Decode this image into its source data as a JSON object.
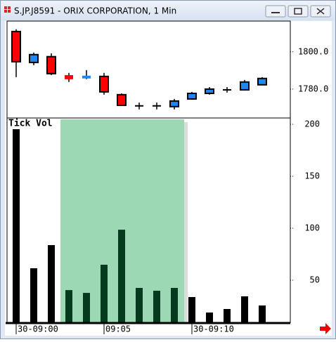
{
  "window_title": "S.JP.J8591 - ORIX CORPORATION, 1 Min",
  "chart_data": [
    {
      "type": "candlestick",
      "categories": [
        "30-09:00",
        null,
        null,
        null,
        null,
        "09:05",
        null,
        null,
        null,
        null,
        "30-09:10",
        null,
        null,
        null,
        null
      ],
      "open": [
        1810.9,
        1794.3,
        1797.4,
        1787.5,
        1785.7,
        1786.8,
        1777.0,
        1771.0,
        1771.0,
        1770.6,
        1774.7,
        1777.7,
        1779.6,
        1779.6,
        1782.3
      ],
      "high": [
        1812.1,
        1799.6,
        1799.2,
        1788.7,
        1790.2,
        1788.7,
        1777.7,
        1772.8,
        1772.8,
        1774.7,
        1778.5,
        1781.1,
        1781.1,
        1784.9,
        1786.4
      ],
      "low": [
        1786.4,
        1792.8,
        1787.5,
        1783.8,
        1785.3,
        1777.0,
        1771.3,
        1769.1,
        1769.1,
        1769.1,
        1774.3,
        1777.0,
        1778.1,
        1779.2,
        1782.0
      ],
      "close": [
        1794.7,
        1798.5,
        1788.3,
        1785.3,
        1787.2,
        1778.5,
        1771.3,
        1771.0,
        1771.0,
        1773.6,
        1777.7,
        1780.0,
        1779.6,
        1783.8,
        1785.7
      ],
      "up_color": "#1e88f0",
      "down_color": "#ff0000",
      "flat_color": "#000000",
      "ylim": [
        1764.5,
        1816.5
      ],
      "yticks": [
        {
          "value": 1780,
          "label": "1780.0"
        },
        {
          "value": 1800,
          "label": "1800.0"
        }
      ]
    },
    {
      "type": "bar",
      "title": "Tick Vol",
      "categories": [
        "30-09:00",
        null,
        null,
        null,
        null,
        "09:05",
        null,
        null,
        null,
        null,
        "30-09:10",
        null,
        null,
        null,
        null
      ],
      "values": [
        195.3,
        61.5,
        83.8,
        40.5,
        37.8,
        64.9,
        98.6,
        42.6,
        39.9,
        42.6,
        33.8,
        18.9,
        22.3,
        34.5,
        25.7
      ],
      "color": "#000000",
      "ylim": [
        8.8,
        206.1
      ],
      "yticks": [
        50,
        100,
        150,
        200
      ]
    }
  ]
}
